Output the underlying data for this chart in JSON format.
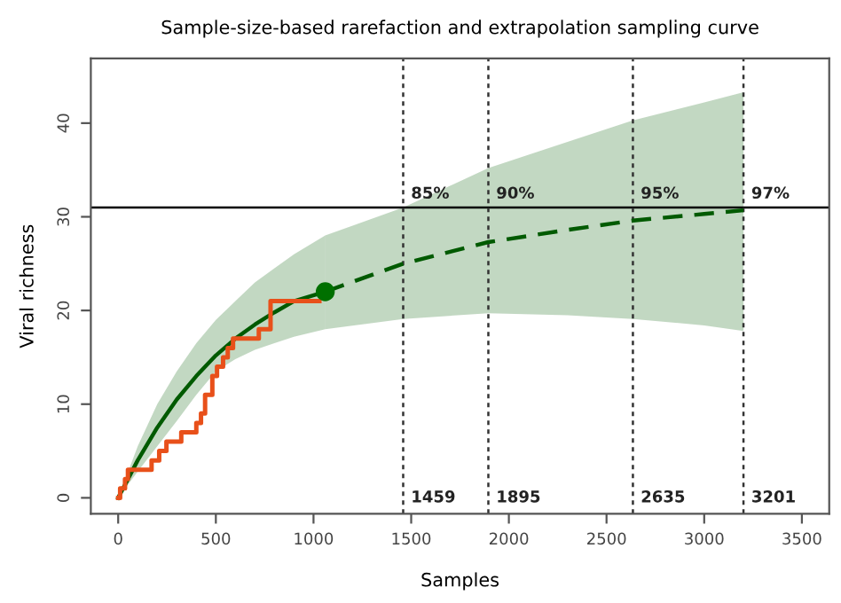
{
  "chart_data": {
    "type": "line",
    "title": "Sample-size-based rarefaction and extrapolation sampling curve",
    "xlabel": "Samples",
    "ylabel": "Viral richness",
    "xlim": [
      -140,
      3640
    ],
    "ylim": [
      -1.7,
      46.9
    ],
    "xticks": [
      0,
      500,
      1000,
      1500,
      2000,
      2500,
      3000,
      3500
    ],
    "yticks": [
      0,
      10,
      20,
      30,
      40
    ],
    "grid": false,
    "legend": false,
    "series": [
      {
        "color": "#005a00",
        "line_style": "solid",
        "x": [
          0,
          100,
          200,
          300,
          400,
          500,
          600,
          700,
          800,
          900,
          1060
        ],
        "values": [
          0,
          4,
          7.5,
          10.5,
          13,
          15.2,
          17,
          18.5,
          19.8,
          21,
          22
        ],
        "upper": [
          0,
          5.5,
          10,
          13.5,
          16.5,
          19,
          21,
          23,
          24.5,
          26,
          28
        ],
        "lower": [
          0,
          2.8,
          5.5,
          8.2,
          11,
          13.5,
          14.8,
          15.8,
          16.5,
          17.2,
          18
        ]
      },
      {
        "color": "#005a00",
        "line_style": "dashed",
        "x": [
          1060,
          1459,
          1895,
          2300,
          2635,
          3000,
          3201
        ],
        "values": [
          22,
          25,
          27.3,
          28.6,
          29.6,
          30.3,
          30.7
        ],
        "upper": [
          28,
          31,
          35.2,
          38,
          40.3,
          42.2,
          43.3
        ],
        "lower": [
          18,
          19.1,
          19.7,
          19.5,
          19.1,
          18.4,
          17.8
        ]
      },
      {
        "type": "step",
        "color": "#e8501a",
        "x": [
          0,
          10,
          35,
          50,
          171,
          210,
          247,
          323,
          400,
          424,
          445,
          482,
          506,
          537,
          561,
          588,
          720,
          780,
          1030
        ],
        "values": [
          0,
          1,
          2,
          3,
          4,
          5,
          6,
          7,
          8,
          9,
          11,
          13,
          14,
          15,
          16,
          17,
          18,
          21,
          21
        ]
      },
      {
        "type": "scatter",
        "color": "#007000",
        "marker": "circle",
        "x": [
          1060
        ],
        "values": [
          22
        ]
      }
    ],
    "ref_lines": [
      {
        "axis": "y",
        "value": 31,
        "color": "#000000",
        "line_style": "solid"
      },
      {
        "axis": "x",
        "value": 1459,
        "label": "1459",
        "color": "#333333",
        "line_style": "dotted"
      },
      {
        "axis": "x",
        "value": 1895,
        "label": "1895",
        "color": "#333333",
        "line_style": "dotted"
      },
      {
        "axis": "x",
        "value": 2635,
        "label": "2635",
        "color": "#333333",
        "line_style": "dotted"
      },
      {
        "axis": "x",
        "value": 3201,
        "label": "3201",
        "color": "#333333",
        "line_style": "dotted"
      }
    ],
    "annotations": [
      {
        "text": "85%",
        "x": 1459,
        "y": 31
      },
      {
        "text": "90%",
        "x": 1895,
        "y": 31
      },
      {
        "text": "95%",
        "x": 2635,
        "y": 31
      },
      {
        "text": "97%",
        "x": 3201,
        "y": 31
      }
    ]
  }
}
